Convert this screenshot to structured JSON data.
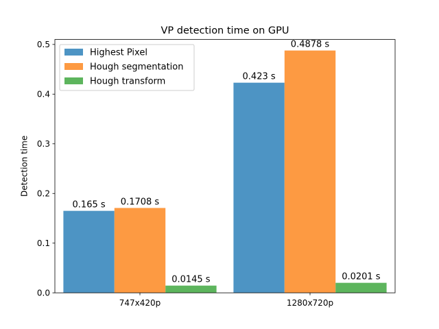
{
  "chart_data": {
    "type": "bar",
    "title": "VP detection time on GPU",
    "xlabel": "",
    "ylabel": "Detection time",
    "categories": [
      "747x420p",
      "1280x720p"
    ],
    "ylim": [
      0,
      0.51
    ],
    "yticks": [
      "0.0",
      "0.1",
      "0.2",
      "0.3",
      "0.4",
      "0.5"
    ],
    "grid": false,
    "legend_position": "top-left",
    "series": [
      {
        "name": "Highest Pixel",
        "color": "#4d94c4",
        "values": [
          0.165,
          0.423
        ],
        "labels": [
          "0.165 s",
          "0.423 s"
        ]
      },
      {
        "name": "Hough segmentation",
        "color": "#fd9a42",
        "values": [
          0.1708,
          0.4878
        ],
        "labels": [
          "0.1708 s",
          "0.4878 s"
        ]
      },
      {
        "name": "Hough transform",
        "color": "#5db55d",
        "values": [
          0.0145,
          0.0201
        ],
        "labels": [
          "0.0145 s",
          "0.0201 s"
        ]
      }
    ]
  }
}
